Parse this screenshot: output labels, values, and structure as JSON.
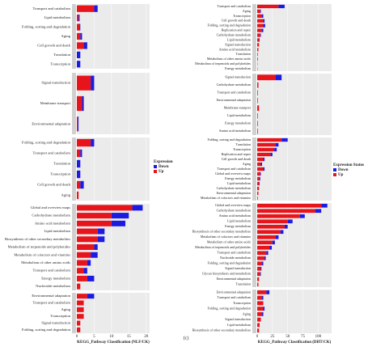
{
  "chart_data": [
    {
      "type": "bar",
      "orientation": "horizontal",
      "x_label": "KEGG_Pathway Classification (NLF/CK)",
      "xlim": [
        0,
        21
      ],
      "xticks": [
        0,
        5,
        10,
        15,
        20
      ],
      "grid": true,
      "legend_title": "Expression",
      "series": [
        {
          "name": "Up",
          "color": "#e8141b"
        },
        {
          "name": "Down",
          "color": "#1c1ce0"
        }
      ],
      "panels": [
        {
          "categories": [
            "Transport and catabolism",
            "Lipid metabolism",
            "Folding, sorting and degradation",
            "Aging",
            "Cell growth and death",
            "Translation",
            "Transcription"
          ],
          "series": [
            {
              "values": [
                5,
                0.5,
                0.8,
                1,
                2,
                0,
                0
              ]
            },
            {
              "values": [
                1,
                0.3,
                0.2,
                0.5,
                1,
                1,
                1
              ]
            }
          ]
        },
        {
          "categories": [
            "Signal transduction",
            "Membrane transport",
            "Environmental adaptation"
          ],
          "series": [
            {
              "values": [
                4,
                1.5,
                0.3
              ]
            },
            {
              "values": [
                1,
                0.5,
                0.2
              ]
            }
          ]
        },
        {
          "categories": [
            "Folding, sorting and degradation",
            "Transport and catabolism",
            "Translation",
            "Transcription",
            "Cell growth and death",
            "Aging"
          ],
          "series": [
            {
              "values": [
                4,
                1,
                0,
                0,
                1,
                0.5
              ]
            },
            {
              "values": [
                1,
                0.5,
                1,
                1,
                1,
                0
              ]
            }
          ]
        },
        {
          "categories": [
            "Global and overview maps",
            "Carbohydrate metabolism",
            "Amino acid metabolism",
            "Lipid metabolism",
            "Biosynthesis of other secondary metabolites",
            "Metabolism of terpenoids and polyketides",
            "Metabolism of cofactors and vitamins",
            "Metabolism of other amino acids",
            "Transport and catabolism",
            "Energy metabolism",
            "Nucleotide metabolism"
          ],
          "series": [
            {
              "values": [
                16,
                10,
                10,
                6,
                6,
                5,
                4,
                3,
                2,
                3,
                1
              ]
            },
            {
              "values": [
                3,
                5,
                4,
                2,
                2,
                1,
                2,
                1,
                1,
                2,
                0
              ]
            }
          ]
        },
        {
          "categories": [
            "Environmental adaptation",
            "Transport and catabolism",
            "Aging",
            "Transcription",
            "Signal transduction",
            "Folding, sorting and degradation"
          ],
          "series": [
            {
              "values": [
                3,
                2,
                2,
                2,
                1,
                1
              ]
            },
            {
              "values": [
                2,
                0,
                0,
                0,
                0,
                0
              ]
            }
          ]
        }
      ]
    },
    {
      "type": "bar",
      "orientation": "horizontal",
      "x_label": "KEGG_Pathway Classification (DHT/CK)",
      "panel_label": "(c)",
      "xlim": [
        0,
        122
      ],
      "xticks": [
        0,
        25,
        50,
        75,
        100
      ],
      "grid": true,
      "legend_title": "Expression Status",
      "series": [
        {
          "name": "Up",
          "color": "#e8141b"
        },
        {
          "name": "Down",
          "color": "#1c1ce0"
        }
      ],
      "panels": [
        {
          "categories": [
            "Transport and catabolism",
            "Aging",
            "Transcription",
            "Cell growth and death",
            "Folding, sorting and degradation",
            "Replication and repair",
            "Carbohydrate metabolism",
            "Lipid metabolism",
            "Signal transduction",
            "Amino acid metabolism",
            "Translation",
            "Metabolism of other amino acids",
            "Metabolism of terpenoids and polyketides",
            "Energy metabolism"
          ],
          "series": [
            {
              "values": [
                35,
                5,
                8,
                10,
                10,
                8,
                5,
                3,
                3,
                2,
                1,
                1,
                0.5,
                0.5
              ]
            },
            {
              "values": [
                10,
                1,
                2,
                2,
                3,
                2,
                1,
                1,
                0,
                0,
                0,
                0,
                0,
                0
              ]
            }
          ]
        },
        {
          "categories": [
            "Signal transduction",
            "Carbohydrate metabolism",
            "Transport and catabolism",
            "Environmental adaptation",
            "Membrane transport",
            "Lipid metabolism",
            "Energy metabolism",
            "Amino acid metabolism"
          ],
          "series": [
            {
              "values": [
                30,
                2,
                1,
                1,
                3,
                1,
                1,
                1
              ]
            },
            {
              "values": [
                10,
                0,
                0,
                0,
                0,
                0,
                0,
                0
              ]
            }
          ]
        },
        {
          "categories": [
            "Folding, sorting and degradation",
            "Translation",
            "Transcription",
            "Replication and repair",
            "Cell growth and death",
            "Aging",
            "Transport and catabolism",
            "Global and overview maps",
            "Energy metabolism",
            "Lipid metabolism",
            "Carbohydrate metabolism",
            "Environmental adaptation",
            "Metabolism of cofactors and vitamins"
          ],
          "series": [
            {
              "values": [
                40,
                30,
                28,
                22,
                10,
                6,
                10,
                5,
                4,
                3,
                3,
                2,
                1
              ]
            },
            {
              "values": [
                10,
                5,
                4,
                3,
                2,
                2,
                2,
                1,
                1,
                1,
                0,
                0,
                0
              ]
            }
          ]
        },
        {
          "categories": [
            "Global and overview maps",
            "Carbohydrate metabolism",
            "Amino acid metabolism",
            "Lipid metabolism",
            "Energy metabolism",
            "Biosynthesis of other secondary metabolites",
            "Metabolism of cofactors and vitamins",
            "Metabolism of other amino acids",
            "Metabolism of terpenoids and polyketides",
            "Transport and catabolism",
            "Nucleotide metabolism",
            "Folding, sorting and degradation",
            "Signal transduction",
            "Glycan biosynthesis and metabolism",
            "Environmental adaptation",
            "Translation"
          ],
          "series": [
            {
              "values": [
                105,
                95,
                70,
                50,
                45,
                38,
                30,
                25,
                20,
                15,
                12,
                8,
                6,
                5,
                3,
                2
              ]
            },
            {
              "values": [
                10,
                10,
                8,
                8,
                5,
                5,
                5,
                4,
                4,
                3,
                2,
                2,
                1,
                1,
                0,
                0
              ]
            }
          ]
        },
        {
          "categories": [
            "Environmental adaptation",
            "Transport and catabolism",
            "Transcription",
            "Folding, sorting and degradation",
            "Aging",
            "Signal transduction",
            "Lipid metabolism",
            "Biosynthesis of other secondary metabolites"
          ],
          "series": [
            {
              "values": [
                15,
                8,
                10,
                10,
                8,
                6,
                4,
                3
              ]
            },
            {
              "values": [
                5,
                2,
                0,
                2,
                2,
                0,
                0,
                0
              ]
            }
          ]
        }
      ]
    }
  ]
}
